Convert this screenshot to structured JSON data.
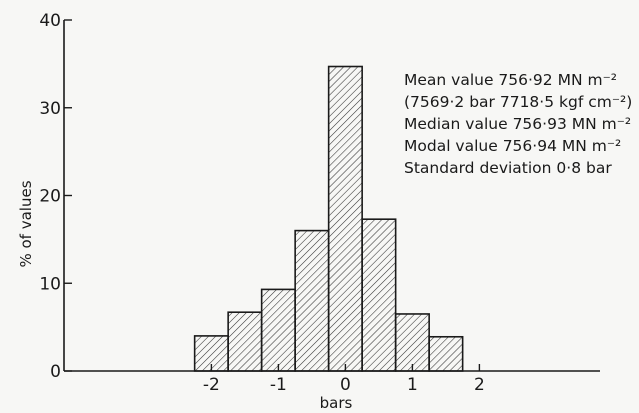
{
  "chart_data": {
    "type": "bar",
    "title": "",
    "xlabel": "bars",
    "ylabel": "% of values",
    "ylim": [
      0,
      40
    ],
    "xlim": [
      -4.2,
      3.8
    ],
    "yticks": [
      0,
      10,
      20,
      30,
      40
    ],
    "xticks": [
      -2,
      -1,
      0,
      1,
      2
    ],
    "xtick_labels": [
      "-2",
      "-1",
      "0",
      "1",
      "2"
    ],
    "ytick_labels": [
      "0",
      "10",
      "20",
      "30",
      "40"
    ],
    "bin_width": 0.5,
    "bins": [
      {
        "center": -2.0,
        "value": 4.0
      },
      {
        "center": -1.5,
        "value": 6.7
      },
      {
        "center": -1.0,
        "value": 9.3
      },
      {
        "center": -0.5,
        "value": 16.0
      },
      {
        "center": 0.0,
        "value": 34.7
      },
      {
        "center": 0.5,
        "value": 17.3
      },
      {
        "center": 1.0,
        "value": 6.5
      },
      {
        "center": 1.5,
        "value": 3.9
      }
    ],
    "grid": false,
    "annotations": [
      "Mean value 756·92 MN m⁻²",
      "(7569·2 bar  7718·5 kgf cm⁻²)",
      "Median value 756·93 MN m⁻²",
      "Modal value 756·94 MN m⁻²",
      "Standard deviation 0·8 bar"
    ]
  }
}
